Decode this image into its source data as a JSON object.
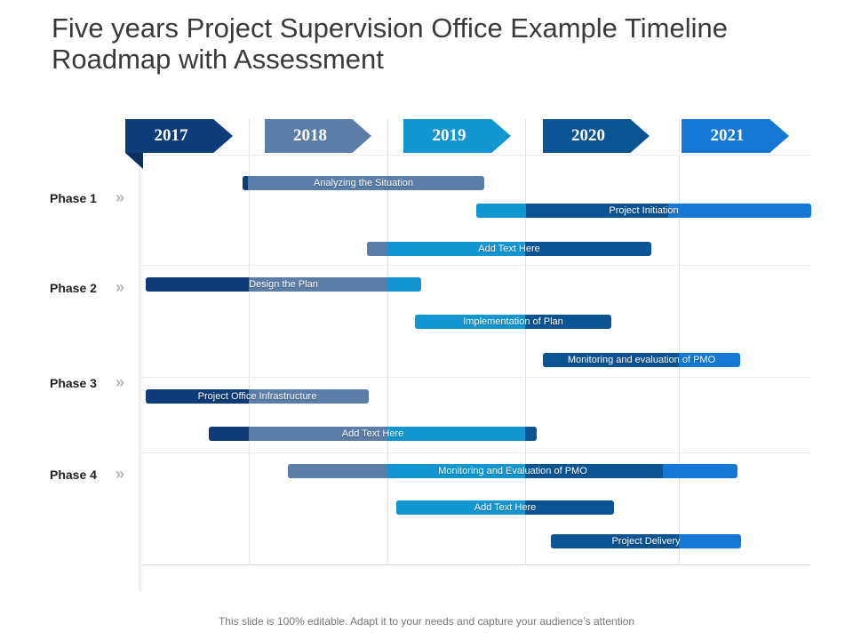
{
  "title": "Five years Project Supervision Office Example Timeline Roadmap with Assessment",
  "years": [
    "2017",
    "2018",
    "2019",
    "2020",
    "2021"
  ],
  "phases": [
    "Phase 1",
    "Phase 2",
    "Phase 3",
    "Phase 4"
  ],
  "bars": [
    {
      "label": "Analyzing the Situation"
    },
    {
      "label": "Project Initiation"
    },
    {
      "label": "Add Text Here"
    },
    {
      "label": "Design the Plan"
    },
    {
      "label": "Implementation of Plan"
    },
    {
      "label": "Monitoring and evaluation of  PMO"
    },
    {
      "label": "Project Office Infrastructure"
    },
    {
      "label": "Add Text Here"
    },
    {
      "label": "Monitoring and Evaluation of  PMO"
    },
    {
      "label": "Add Text Here"
    },
    {
      "label": "Project Delivery"
    }
  ],
  "colors": {
    "navy": "#0d3c78",
    "slate": "#5a7ea8",
    "cyan": "#1196d1",
    "deep": "#0b5494",
    "bright": "#1478d4"
  },
  "footer": "This slide is 100% editable. Adapt it to your needs and capture your audience’s attention"
}
